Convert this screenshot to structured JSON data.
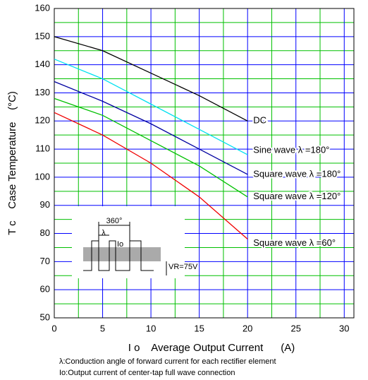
{
  "chart_data": {
    "type": "line",
    "x_label": "I o    Average Output Current      (A)",
    "y_label": "T c    Case Temperature    (°C)",
    "x": [
      0,
      5,
      10,
      15,
      20
    ],
    "series": [
      {
        "name": "DC",
        "color": "#000000",
        "values": [
          150,
          145,
          137,
          129,
          120
        ]
      },
      {
        "name": "Sine wave λ =180°",
        "color": "#00e0f0",
        "values": [
          142,
          135,
          126,
          117,
          108
        ]
      },
      {
        "name": "Square wave λ =180°",
        "color": "#0000a0",
        "values": [
          134,
          127,
          119,
          110,
          101
        ]
      },
      {
        "name": "Square wave λ =120°",
        "color": "#00c000",
        "values": [
          128,
          122,
          113,
          104,
          93
        ]
      },
      {
        "name": "Square wave λ =60°",
        "color": "#f00000",
        "values": [
          123,
          115,
          105,
          93,
          78
        ]
      }
    ],
    "xlim": [
      0,
      31
    ],
    "ylim": [
      50,
      160
    ],
    "xticks": [
      0,
      5,
      10,
      15,
      20,
      25,
      30
    ],
    "yticks": [
      50,
      60,
      70,
      80,
      90,
      100,
      110,
      120,
      130,
      140,
      150,
      160
    ],
    "x_minor_ticks": [
      2.5,
      7.5,
      12.5,
      17.5,
      22.5,
      27.5
    ],
    "y_minor_ticks": [
      55,
      65,
      75,
      85,
      95,
      105,
      115,
      125,
      135,
      145,
      155
    ],
    "major_grid_color": "#0000ff",
    "minor_grid_color": "#00c000",
    "inset_labels": {
      "angle": "360°",
      "lambda": "λ",
      "current": "Io",
      "voltage": "VR=75V"
    },
    "notes": [
      "λ:Conduction angle of forward current for each rectifier element",
      "Io:Output current of center-tap full wave connection"
    ]
  }
}
